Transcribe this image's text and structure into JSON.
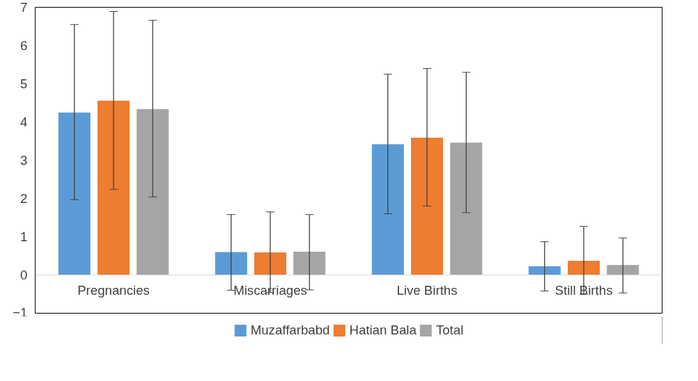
{
  "chart_data": {
    "type": "bar",
    "categories": [
      "Pregnancies",
      "Miscarriages",
      "Live Births",
      "Still Births"
    ],
    "series": [
      {
        "name": "Muzaffarbabd",
        "color": "#5b9bd5",
        "values": [
          4.24,
          0.59,
          3.41,
          0.22
        ],
        "errors": [
          [
            1.97,
            6.55
          ],
          [
            -0.4,
            1.58
          ],
          [
            1.6,
            5.25
          ],
          [
            -0.42,
            0.87
          ]
        ]
      },
      {
        "name": "Hatian Bala",
        "color": "#ed7d31",
        "values": [
          4.55,
          0.58,
          3.58,
          0.36
        ],
        "errors": [
          [
            2.24,
            6.89
          ],
          [
            -0.46,
            1.65
          ],
          [
            1.8,
            5.4
          ],
          [
            -0.5,
            1.27
          ]
        ]
      },
      {
        "name": "Total",
        "color": "#a5a5a5",
        "values": [
          4.33,
          0.6,
          3.45,
          0.25
        ],
        "errors": [
          [
            2.04,
            6.66
          ],
          [
            -0.39,
            1.58
          ],
          [
            1.63,
            5.3
          ],
          [
            -0.47,
            0.97
          ]
        ]
      }
    ],
    "ylim": [
      -1,
      7
    ],
    "yticks": [
      -1,
      0,
      1,
      2,
      3,
      4,
      5,
      6,
      7
    ],
    "grid": false,
    "legend": "bottom"
  }
}
